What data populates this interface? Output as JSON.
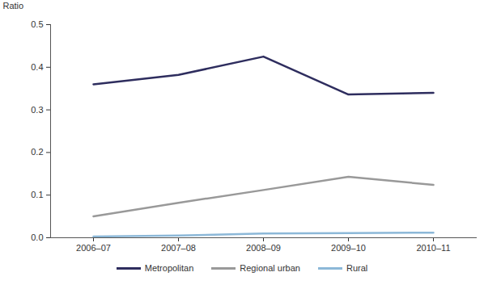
{
  "chart_data": {
    "type": "line",
    "y_label": "Ratio",
    "categories": [
      "2006–07",
      "2007–08",
      "2008–09",
      "2009–10",
      "2010–11"
    ],
    "series": [
      {
        "name": "Metropolitan",
        "color": "#2e2d5e",
        "values": [
          0.36,
          0.382,
          0.425,
          0.336,
          0.34
        ]
      },
      {
        "name": "Regional urban",
        "color": "#999999",
        "values": [
          0.05,
          0.082,
          0.112,
          0.143,
          0.124
        ]
      },
      {
        "name": "Rural",
        "color": "#8cb8d8",
        "values": [
          0.003,
          0.005,
          0.01,
          0.011,
          0.012
        ]
      }
    ],
    "ylim": [
      0,
      0.5
    ],
    "yticks": [
      {
        "value": 0,
        "label": "0.0"
      },
      0.1,
      0.2,
      0.3,
      0.4,
      0.5
    ],
    "grid": false,
    "legend": "bottom"
  }
}
